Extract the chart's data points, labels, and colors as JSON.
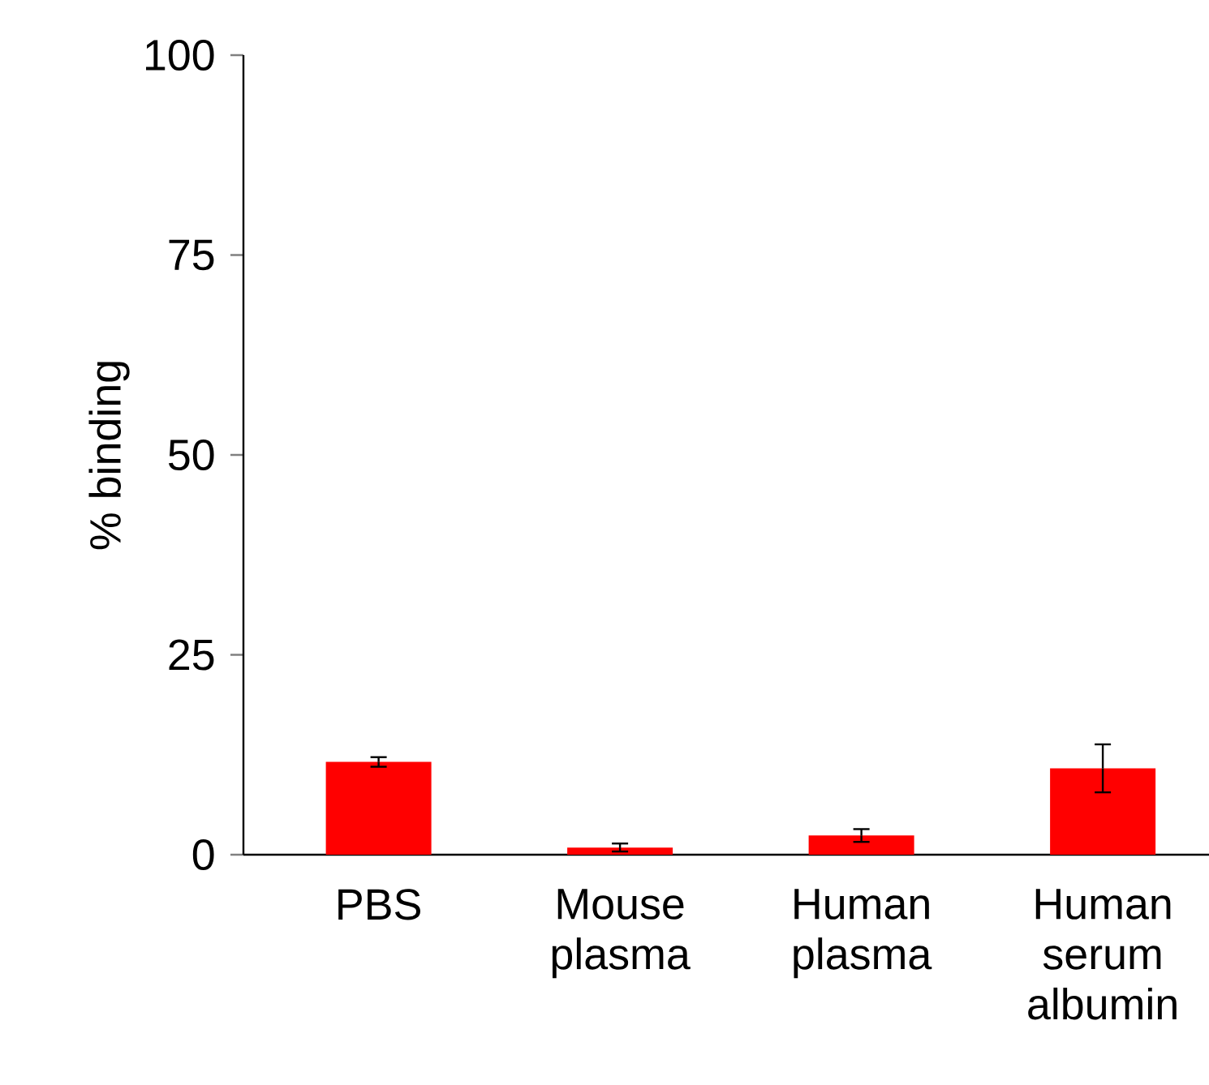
{
  "chart_data": {
    "type": "bar",
    "ylabel": "% binding",
    "categories": [
      "PBS",
      "Mouse plasma",
      "Human plasma",
      "Human serum albumin"
    ],
    "values": [
      11.6,
      0.9,
      2.4,
      10.8
    ],
    "errors": [
      0.6,
      0.5,
      0.8,
      3.0
    ],
    "color": "#ff0000",
    "ylim": [
      0,
      100
    ],
    "yticks": [
      0,
      25,
      50,
      75,
      100
    ]
  }
}
